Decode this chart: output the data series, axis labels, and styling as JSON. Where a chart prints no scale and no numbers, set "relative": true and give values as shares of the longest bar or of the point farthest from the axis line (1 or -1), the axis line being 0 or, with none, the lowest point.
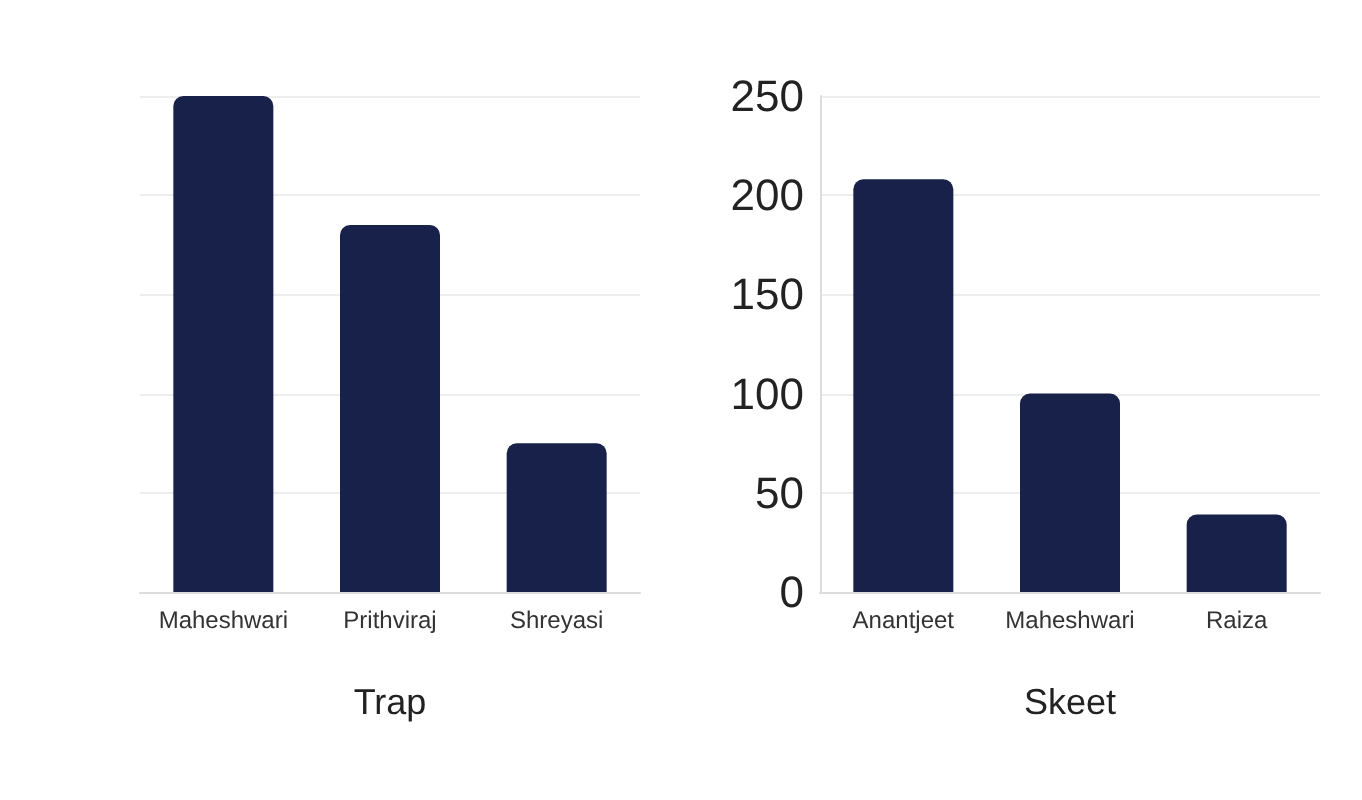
{
  "chart_data": [
    {
      "type": "bar",
      "xlabel": "Trap",
      "relative": true,
      "grid": "y",
      "categories": [
        "Maheshwari",
        "Prithviraj",
        "Shreyasi"
      ],
      "values": [
        1,
        0.74,
        0.3
      ],
      "color": "#18214a"
    },
    {
      "type": "bar",
      "xlabel": "Skeet",
      "grid": "y",
      "categories": [
        "Anantjeet",
        "Maheshwari",
        "Raiza"
      ],
      "values": [
        208,
        100,
        39
      ],
      "color": "#18214a",
      "ylim": [
        0,
        250
      ],
      "yticks": [
        0,
        50,
        100,
        150,
        200,
        250
      ]
    }
  ]
}
